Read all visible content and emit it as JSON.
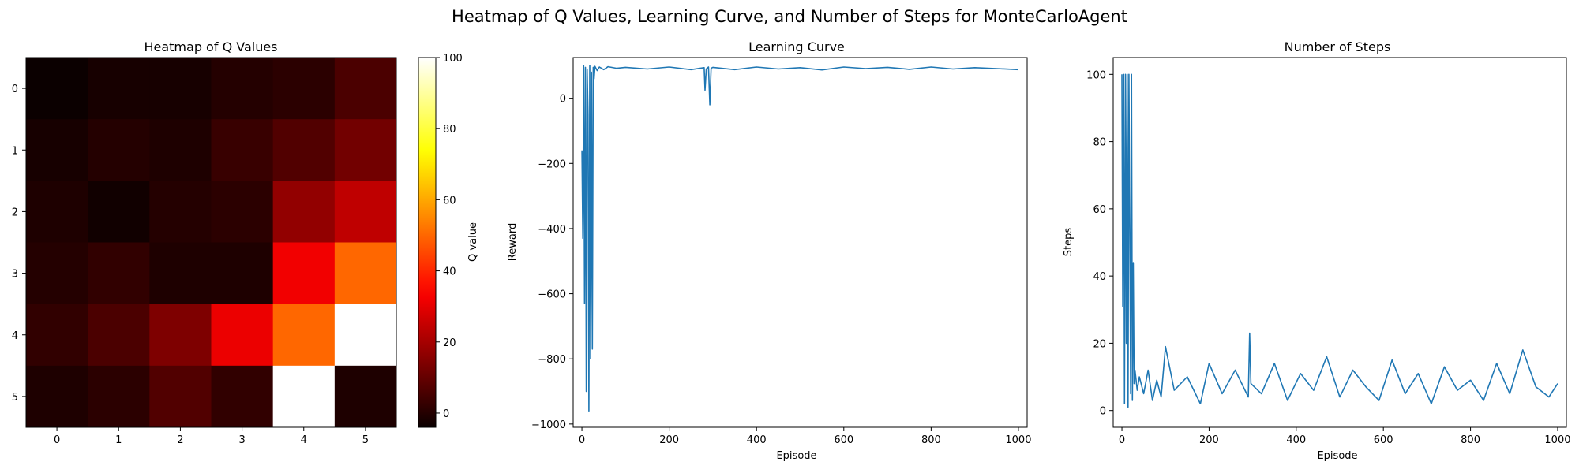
{
  "figure_title": "Heatmap of Q Values, Learning Curve, and Number of Steps for MonteCarloAgent",
  "chart_data": [
    {
      "type": "heatmap",
      "title": "Heatmap of Q Values",
      "colormap": "hot",
      "x_ticks": [
        "0",
        "1",
        "2",
        "3",
        "4",
        "5"
      ],
      "y_ticks": [
        "0",
        "1",
        "2",
        "3",
        "4",
        "5"
      ],
      "values": [
        [
          -4,
          -2,
          -2,
          0,
          1,
          6
        ],
        [
          -2,
          0,
          -1,
          3,
          7,
          12
        ],
        [
          -1,
          -3,
          0,
          1,
          17,
          24
        ],
        [
          0,
          2,
          -1,
          -1,
          32,
          50
        ],
        [
          2,
          6,
          14,
          31,
          50,
          100
        ],
        [
          -1,
          1,
          7,
          2,
          100,
          -1
        ]
      ],
      "colorbar": {
        "label": "Q value",
        "range": [
          -4,
          100
        ],
        "ticks": [
          0,
          20,
          40,
          60,
          80,
          100
        ]
      }
    },
    {
      "type": "line",
      "title": "Learning Curve",
      "xlabel": "Episode",
      "ylabel": "Reward",
      "xlim": [
        -20,
        1020
      ],
      "ylim": [
        -1010,
        125
      ],
      "x_ticks": [
        0,
        200,
        400,
        600,
        800,
        1000
      ],
      "y_ticks": [
        0,
        -200,
        -400,
        -600,
        -800,
        -1000
      ],
      "x": [
        0,
        2,
        4,
        6,
        8,
        10,
        12,
        14,
        16,
        18,
        20,
        22,
        24,
        26,
        28,
        30,
        35,
        40,
        50,
        60,
        80,
        100,
        150,
        200,
        250,
        280,
        282,
        285,
        290,
        293,
        296,
        300,
        350,
        400,
        450,
        500,
        550,
        600,
        650,
        700,
        750,
        800,
        850,
        900,
        950,
        1000
      ],
      "y": [
        -160,
        -430,
        100,
        -630,
        95,
        -900,
        90,
        -50,
        -960,
        100,
        -800,
        80,
        -770,
        95,
        60,
        98,
        85,
        96,
        88,
        97,
        92,
        95,
        90,
        96,
        88,
        94,
        25,
        90,
        96,
        -20,
        92,
        95,
        88,
        96,
        90,
        94,
        87,
        96,
        91,
        95,
        89,
        96,
        90,
        94,
        91,
        88
      ]
    },
    {
      "type": "line",
      "title": "Number of Steps",
      "xlabel": "Episode",
      "ylabel": "Steps",
      "xlim": [
        -20,
        1020
      ],
      "ylim": [
        -5,
        105
      ],
      "x_ticks": [
        0,
        200,
        400,
        600,
        800,
        1000
      ],
      "y_ticks": [
        0,
        20,
        40,
        60,
        80,
        100
      ],
      "x": [
        0,
        2,
        4,
        6,
        8,
        10,
        12,
        14,
        16,
        18,
        20,
        22,
        24,
        26,
        28,
        30,
        35,
        40,
        50,
        60,
        70,
        80,
        90,
        100,
        120,
        150,
        180,
        200,
        230,
        260,
        290,
        293,
        296,
        320,
        350,
        380,
        410,
        440,
        470,
        500,
        530,
        560,
        590,
        620,
        650,
        680,
        710,
        740,
        770,
        800,
        830,
        860,
        890,
        920,
        950,
        980,
        1000
      ],
      "y": [
        100,
        31,
        100,
        2,
        100,
        20,
        100,
        1,
        100,
        55,
        5,
        100,
        3,
        44,
        8,
        12,
        6,
        10,
        5,
        12,
        3,
        9,
        4,
        19,
        6,
        10,
        2,
        14,
        5,
        12,
        4,
        23,
        8,
        5,
        14,
        3,
        11,
        6,
        16,
        4,
        12,
        7,
        3,
        15,
        5,
        11,
        2,
        13,
        6,
        9,
        3,
        14,
        5,
        18,
        7,
        4,
        8
      ]
    }
  ]
}
